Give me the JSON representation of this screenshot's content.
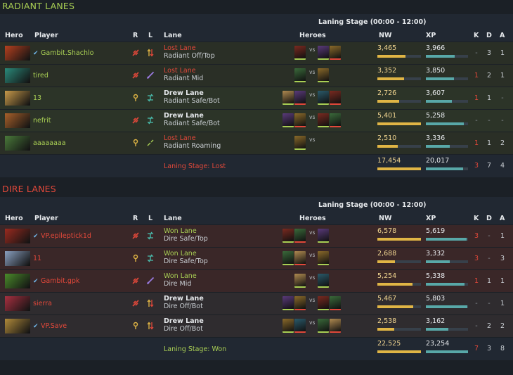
{
  "radiant": {
    "title": "RADIANT LANES",
    "stage": "Laning Stage (00:00 - 12:00)",
    "headers": {
      "hero": "Hero",
      "player": "Player",
      "r": "R",
      "l": "L",
      "lane": "Lane",
      "heroes": "Heroes",
      "nw": "NW",
      "xp": "XP",
      "k": "K",
      "d": "D",
      "a": "A"
    },
    "rows": [
      {
        "player": "Gambit.Shachlo",
        "verified": true,
        "result": "Lost Lane",
        "lane": "Radiant Off/Top",
        "nw": "3,465",
        "nw_pct": 0.64,
        "xp": "3,966",
        "xp_pct": 0.68,
        "k": "-",
        "d": "3",
        "a": "1",
        "hero_color": "#b5401f",
        "role_icon": "carry-icon",
        "lane_icon": "offlane-arrows-icon"
      },
      {
        "player": "tired",
        "verified": false,
        "result": "Lost Lane",
        "lane": "Radiant Mid",
        "nw": "3,352",
        "nw_pct": 0.62,
        "xp": "3,850",
        "xp_pct": 0.66,
        "k": "1",
        "d": "2",
        "a": "1",
        "hero_color": "#2a8a7a",
        "role_icon": "carry-icon",
        "lane_icon": "mid-sword-icon"
      },
      {
        "player": "13",
        "verified": false,
        "result": "Drew Lane",
        "lane": "Radiant Safe/Bot",
        "nw": "2,726",
        "nw_pct": 0.5,
        "xp": "3,607",
        "xp_pct": 0.62,
        "k": "1",
        "d": "1",
        "a": "-",
        "hero_color": "#c79a4a",
        "role_icon": "support-icon",
        "lane_icon": "safelane-icon"
      },
      {
        "player": "nefrit",
        "verified": false,
        "result": "Drew Lane",
        "lane": "Radiant Safe/Bot",
        "nw": "5,401",
        "nw_pct": 1.0,
        "xp": "5,258",
        "xp_pct": 0.9,
        "k": "-",
        "d": "-",
        "a": "-",
        "hero_color": "#a8602a",
        "role_icon": "carry-icon",
        "lane_icon": "safelane-icon"
      },
      {
        "player": "aaaaaaaa",
        "verified": false,
        "result": "Lost Lane",
        "lane": "Radiant Roaming",
        "nw": "2,510",
        "nw_pct": 0.46,
        "xp": "3,336",
        "xp_pct": 0.57,
        "k": "1",
        "d": "1",
        "a": "2",
        "hero_color": "#4a7a3a",
        "role_icon": "support-icon",
        "lane_icon": "roam-icon"
      }
    ],
    "summary": {
      "label": "Laning Stage: Lost",
      "nw": "17,454",
      "xp": "20,017",
      "k": "3",
      "d": "7",
      "a": "4"
    }
  },
  "dire": {
    "title": "DIRE LANES",
    "stage": "Laning Stage (00:00 - 12:00)",
    "headers": {
      "hero": "Hero",
      "player": "Player",
      "r": "R",
      "l": "L",
      "lane": "Lane",
      "heroes": "Heroes",
      "nw": "NW",
      "xp": "XP",
      "k": "K",
      "d": "D",
      "a": "A"
    },
    "rows": [
      {
        "player": "VP.epileptick1d",
        "verified": true,
        "result": "Won Lane",
        "lane": "Dire Safe/Top",
        "nw": "6,578",
        "nw_pct": 1.0,
        "xp": "5,619",
        "xp_pct": 0.96,
        "k": "3",
        "d": "-",
        "a": "1",
        "hero_color": "#9a2a1f",
        "role_icon": "carry-icon",
        "lane_icon": "safelane-icon"
      },
      {
        "player": "11",
        "verified": false,
        "result": "Won Lane",
        "lane": "Dire Safe/Top",
        "nw": "2,688",
        "nw_pct": 0.41,
        "xp": "3,332",
        "xp_pct": 0.57,
        "k": "3",
        "d": "-",
        "a": "3",
        "hero_color": "#8aa0c0",
        "role_icon": "support-icon",
        "lane_icon": "safelane-icon"
      },
      {
        "player": "Gambit.gpk",
        "verified": true,
        "result": "Won Lane",
        "lane": "Dire Mid",
        "nw": "5,254",
        "nw_pct": 0.8,
        "xp": "5,338",
        "xp_pct": 0.91,
        "k": "1",
        "d": "1",
        "a": "1",
        "hero_color": "#4a8a2a",
        "role_icon": "carry-icon",
        "lane_icon": "mid-sword-icon"
      },
      {
        "player": "sierra",
        "verified": false,
        "result": "Drew Lane",
        "lane": "Dire Off/Bot",
        "nw": "5,467",
        "nw_pct": 0.83,
        "xp": "5,803",
        "xp_pct": 0.99,
        "k": "-",
        "d": "-",
        "a": "1",
        "hero_color": "#a83040",
        "role_icon": "carry-icon",
        "lane_icon": "offlane-arrows-icon"
      },
      {
        "player": "VP.Save",
        "verified": true,
        "result": "Drew Lane",
        "lane": "Dire Off/Bot",
        "nw": "2,538",
        "nw_pct": 0.39,
        "xp": "3,162",
        "xp_pct": 0.54,
        "k": "-",
        "d": "2",
        "a": "2",
        "hero_color": "#b08a3a",
        "role_icon": "support-icon",
        "lane_icon": "offlane-arrows-icon"
      }
    ],
    "summary": {
      "label": "Laning Stage: Won",
      "nw": "22,525",
      "xp": "23,254",
      "k": "7",
      "d": "3",
      "a": "8"
    }
  },
  "vs_text": "vs",
  "colors": {
    "radiant": "#a9cf54",
    "dire": "#e2483a",
    "nw_bar": "#e0b545",
    "xp_bar": "#58a8a8"
  }
}
